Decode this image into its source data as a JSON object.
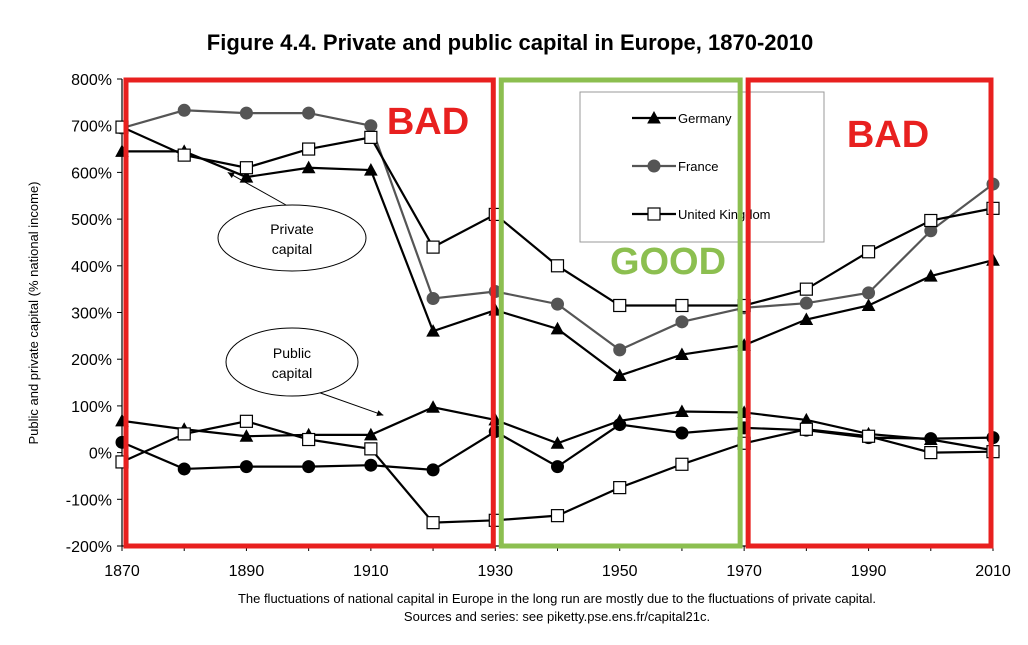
{
  "chart_data": {
    "type": "line",
    "title": "Figure 4.4. Private and public capital in Europe, 1870-2010",
    "ylabel": "Public and private capital (% national income)",
    "xlabel": "",
    "x": [
      1870,
      1880,
      1890,
      1900,
      1910,
      1920,
      1930,
      1940,
      1950,
      1960,
      1970,
      1980,
      1990,
      2000,
      2010
    ],
    "xticks": [
      "1870",
      "1890",
      "1910",
      "1930",
      "1950",
      "1970",
      "1990",
      "2010"
    ],
    "xlim": [
      1870,
      2010
    ],
    "ylim": [
      -200,
      800
    ],
    "yticks": [
      "800%",
      "700%",
      "600%",
      "500%",
      "400%",
      "300%",
      "200%",
      "100%",
      "0%",
      "-100%",
      "-200%"
    ],
    "grid": false,
    "legend_position": "top-center",
    "series": [
      {
        "name": "Germany",
        "group": "Private capital",
        "marker": "triangle",
        "color": "#000000",
        "values": [
          645,
          645,
          590,
          610,
          605,
          260,
          305,
          265,
          165,
          210,
          230,
          285,
          315,
          378,
          412
        ]
      },
      {
        "name": "France",
        "group": "Private capital",
        "marker": "circle",
        "color": "#555555",
        "values": [
          695,
          733,
          727,
          727,
          700,
          330,
          345,
          318,
          220,
          280,
          310,
          320,
          342,
          475,
          575
        ]
      },
      {
        "name": "United Kingdom",
        "group": "Private capital",
        "marker": "square",
        "color": "#000000",
        "values": [
          697,
          637,
          610,
          650,
          675,
          440,
          510,
          400,
          315,
          315,
          315,
          350,
          430,
          497,
          523
        ]
      },
      {
        "name": "Germany",
        "group": "Public capital",
        "marker": "triangle",
        "color": "#000000",
        "values": [
          68,
          50,
          35,
          38,
          38,
          97,
          70,
          20,
          68,
          88,
          86,
          70,
          40,
          28,
          5
        ]
      },
      {
        "name": "France",
        "group": "Public capital",
        "marker": "circle",
        "color": "#000000",
        "values": [
          22,
          -35,
          -30,
          -30,
          -27,
          -37,
          45,
          -30,
          60,
          42,
          53,
          48,
          32,
          30,
          32
        ]
      },
      {
        "name": "United Kingdom",
        "group": "Public capital",
        "marker": "square",
        "color": "#000000",
        "values": [
          -20,
          40,
          67,
          28,
          8,
          -150,
          -145,
          -135,
          -75,
          -25,
          20,
          50,
          35,
          0,
          2
        ]
      }
    ],
    "annotations": [
      {
        "text_lines": [
          "Private",
          "capital"
        ],
        "points_to_year": 1887,
        "points_to_value": 600
      },
      {
        "text_lines": [
          "Public",
          "capital"
        ],
        "points_to_year": 1912,
        "points_to_value": 80
      }
    ],
    "regions": [
      {
        "label": "BAD",
        "from": 1870,
        "to": 1930,
        "color": "#e8201f"
      },
      {
        "label": "GOOD",
        "from": 1930,
        "to": 1970,
        "color": "#8cbf50"
      },
      {
        "label": "BAD",
        "from": 1970,
        "to": 2010,
        "color": "#e8201f"
      }
    ],
    "footnote_lines": [
      "The fluctuations of national capital in Europe in the long run are mostly due to the fluctuations of private capital.",
      "Sources and series: see piketty.pse.ens.fr/capital21c."
    ]
  }
}
